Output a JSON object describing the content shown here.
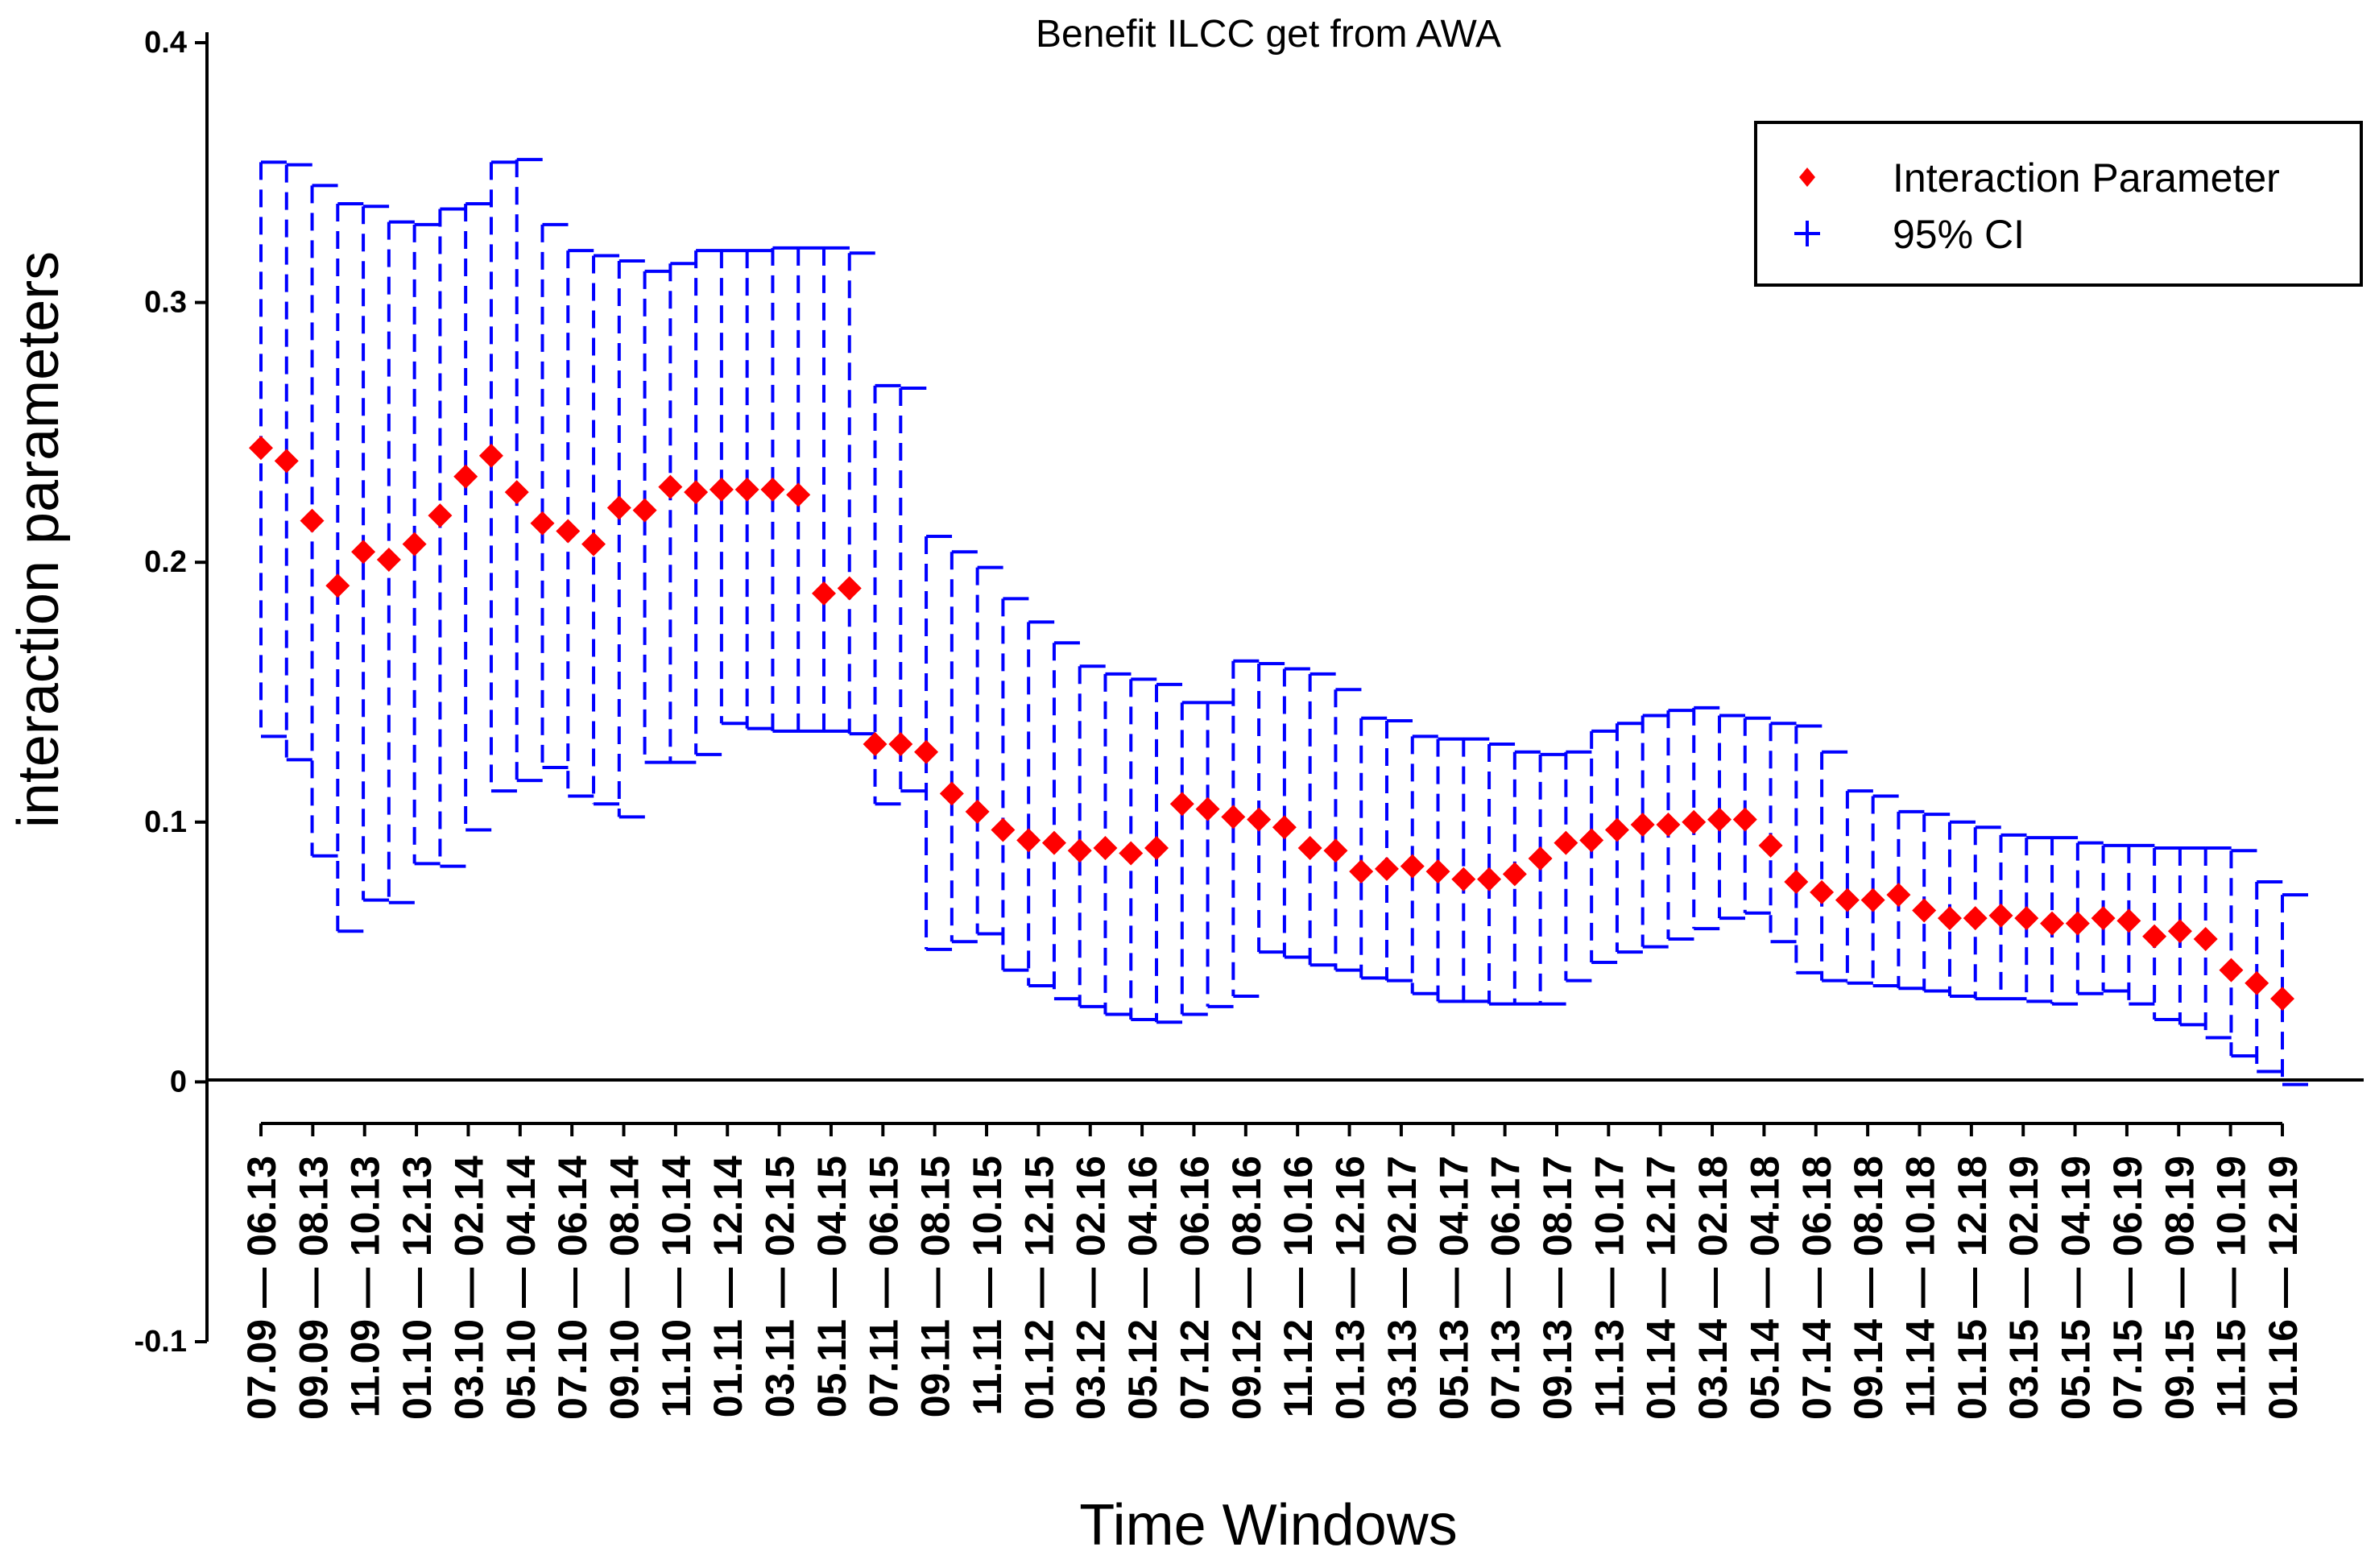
{
  "chart_data": {
    "type": "scatter",
    "title": "Benefit  ILCC get from  AWA",
    "xlabel": "Time Windows",
    "ylabel": "interaction parameters",
    "ylim": [
      -0.1,
      0.4
    ],
    "yticks": [
      "-0.1",
      "0",
      "0.1",
      "0.2",
      "0.3",
      "0.4"
    ],
    "legend": {
      "position": "top-right",
      "items": [
        {
          "label": "Interaction Parameter",
          "marker": "diamond",
          "color": "#ff0000"
        },
        {
          "label": "95% CI",
          "marker": "plus",
          "color": "#0000ff"
        }
      ]
    },
    "categories": [
      "07.09 — 06.13",
      "09.09 — 08.13",
      "11.09 — 10.13",
      "01.10 — 12.13",
      "03.10 — 02.14",
      "05.10 — 04.14",
      "07.10 — 06.14",
      "09.10 — 08.14",
      "11.10 — 10.14",
      "01.11 — 12.14",
      "03.11 — 02.15",
      "05.11 — 04.15",
      "07.11 — 06.15",
      "09.11 — 08.15",
      "11.11 — 10.15",
      "01.12 — 12.15",
      "03.12 — 02.16",
      "05.12 — 04.16",
      "07.12 — 06.16",
      "09.12 — 08.16",
      "11.12 — 10.16",
      "01.13 — 12.16",
      "03.13 — 02.17",
      "05.13 — 04.17",
      "07.13 — 06.17",
      "09.13 — 08.17",
      "11.13 — 10.17",
      "01.14 — 12.17",
      "03.14 — 02.18",
      "05.14 — 04.18",
      "07.14 — 06.18",
      "09.14 — 08.18",
      "11.14 — 10.18",
      "01.15 — 12.18",
      "03.15 — 02.19",
      "05.15 — 04.19",
      "07.15 — 06.19",
      "09.15 — 08.19",
      "11.15 — 10.19",
      "01.16 — 12.19"
    ],
    "series": [
      {
        "name": "Interaction Parameter",
        "values": [
          0.244,
          0.239,
          0.216,
          0.191,
          0.204,
          0.201,
          0.207,
          0.218,
          0.233,
          0.241,
          0.227,
          0.215,
          0.212,
          0.207,
          0.221,
          0.22,
          0.229,
          0.227,
          0.228,
          0.228,
          0.228,
          0.226,
          0.188,
          0.19,
          0.13,
          0.13,
          0.127,
          0.111,
          0.104,
          0.097,
          0.093,
          0.092,
          0.089,
          0.09,
          0.088,
          0.09,
          0.107,
          0.105,
          0.102,
          0.101,
          0.098,
          0.09,
          0.089,
          0.081,
          0.082,
          0.083,
          0.081,
          0.078,
          0.078,
          0.08,
          0.086,
          0.092,
          0.093,
          0.097,
          0.099,
          0.099,
          0.1,
          0.101,
          0.101,
          0.091,
          0.077,
          0.073,
          0.07,
          0.07,
          0.072,
          0.066,
          0.063,
          0.063,
          0.064,
          0.063,
          0.061,
          0.061,
          0.063,
          0.062,
          0.056,
          0.058,
          0.055,
          0.043,
          0.038,
          0.032
        ]
      },
      {
        "name": "95% CI upper",
        "values": [
          0.354,
          0.353,
          0.345,
          0.338,
          0.337,
          0.331,
          0.33,
          0.336,
          0.338,
          0.354,
          0.355,
          0.33,
          0.32,
          0.318,
          0.316,
          0.312,
          0.315,
          0.32,
          0.32,
          0.32,
          0.321,
          0.321,
          0.321,
          0.319,
          0.268,
          0.267,
          0.21,
          0.204,
          0.198,
          0.186,
          0.177,
          0.169,
          0.16,
          0.157,
          0.155,
          0.153,
          0.146,
          0.146,
          0.162,
          0.161,
          0.159,
          0.157,
          0.151,
          0.14,
          0.139,
          0.133,
          0.132,
          0.132,
          0.13,
          0.127,
          0.126,
          0.127,
          0.135,
          0.138,
          0.141,
          0.143,
          0.144,
          0.141,
          0.14,
          0.138,
          0.137,
          0.127,
          0.112,
          0.11,
          0.104,
          0.103,
          0.1,
          0.098,
          0.095,
          0.094,
          0.094,
          0.092,
          0.091,
          0.091,
          0.09,
          0.09,
          0.09,
          0.089,
          0.077,
          0.072
        ]
      },
      {
        "name": "95% CI lower",
        "values": [
          0.133,
          0.124,
          0.087,
          0.058,
          0.07,
          0.069,
          0.084,
          0.083,
          0.097,
          0.112,
          0.116,
          0.121,
          0.11,
          0.107,
          0.102,
          0.123,
          0.123,
          0.126,
          0.138,
          0.136,
          0.135,
          0.135,
          0.135,
          0.134,
          0.107,
          0.112,
          0.051,
          0.054,
          0.057,
          0.043,
          0.037,
          0.032,
          0.029,
          0.026,
          0.024,
          0.023,
          0.026,
          0.029,
          0.033,
          0.05,
          0.048,
          0.045,
          0.043,
          0.04,
          0.039,
          0.034,
          0.031,
          0.031,
          0.03,
          0.03,
          0.03,
          0.039,
          0.046,
          0.05,
          0.052,
          0.055,
          0.059,
          0.063,
          0.065,
          0.054,
          0.042,
          0.039,
          0.038,
          0.037,
          0.036,
          0.035,
          0.033,
          0.032,
          0.032,
          0.031,
          0.03,
          0.034,
          0.035,
          0.03,
          0.024,
          0.022,
          0.017,
          0.01,
          0.004,
          -0.001
        ]
      }
    ]
  }
}
